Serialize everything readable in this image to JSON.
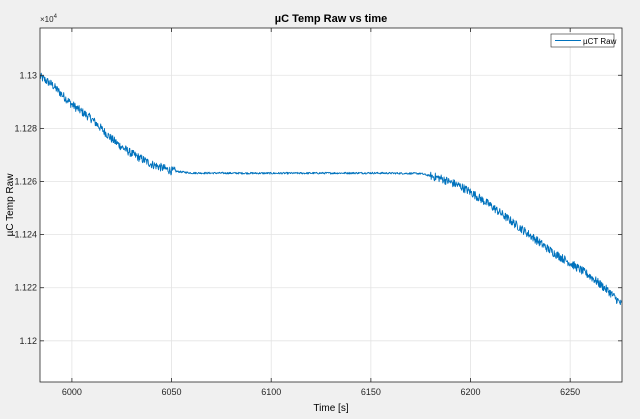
{
  "figure": {
    "background": "#f0f0f0",
    "axes_background": "#ffffff",
    "grid_color": "#e3e3e3",
    "axis_color": "#262626"
  },
  "chart_data": {
    "type": "line",
    "title": "µC Temp Raw vs time",
    "xlabel": "Time [s]",
    "ylabel": "µC Temp Raw",
    "y_exponent_label": "×10",
    "y_exponent_power": "4",
    "xlim": [
      5984,
      6276
    ],
    "ylim": [
      11.1845,
      11.3178
    ],
    "grid": true,
    "legend_position": "top-right",
    "x_ticks": [
      6000,
      6050,
      6100,
      6150,
      6200,
      6250
    ],
    "x_tick_labels": [
      "6000",
      "6050",
      "6100",
      "6150",
      "6200",
      "6250"
    ],
    "y_ticks": [
      11.2,
      11.22,
      11.24,
      11.26,
      11.28,
      11.3
    ],
    "y_tick_labels": [
      "1.12",
      "1.122",
      "1.124",
      "1.126",
      "1.128",
      "1.13"
    ],
    "series": [
      {
        "name": "µCT Raw",
        "color": "#0072bd",
        "x": [
          5984,
          5990,
          6000,
          6010,
          6020,
          6025,
          6030,
          6040,
          6050,
          6060,
          6100,
          6150,
          6175,
          6185,
          6195,
          6200,
          6210,
          6220,
          6230,
          6240,
          6250,
          6260,
          6270,
          6276
        ],
        "y": [
          11.2995,
          11.2965,
          11.289,
          11.2835,
          11.276,
          11.273,
          11.2705,
          11.2665,
          11.264,
          11.2632,
          11.2631,
          11.2632,
          11.263,
          11.2612,
          11.2582,
          11.256,
          11.251,
          11.2453,
          11.2397,
          11.234,
          11.2293,
          11.2244,
          11.2182,
          11.2135
        ]
      }
    ]
  }
}
